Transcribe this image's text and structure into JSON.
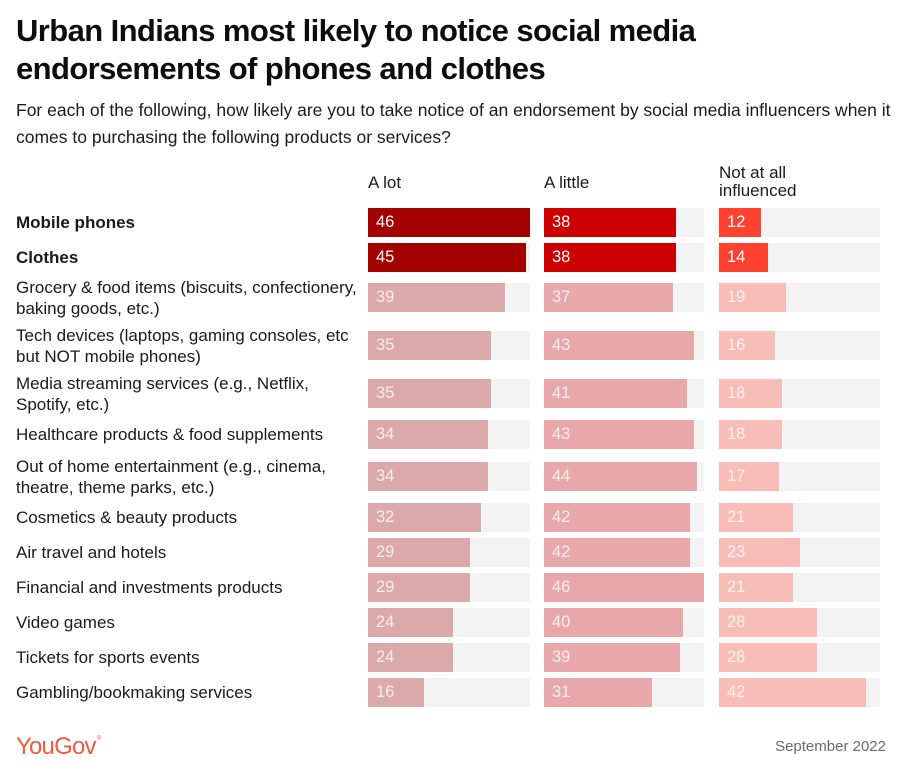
{
  "title": "Urban Indians most likely to notice social media endorsements of phones and clothes",
  "subtitle": "For each of the following, how likely are you to take notice of an endorsement by social media influencers when it comes to purchasing the following products or services?",
  "footer": {
    "logo_text": "YouGov",
    "logo_mark": "®",
    "date": "September 2022"
  },
  "colors": {
    "a_lot_highlight": "#a30000",
    "a_lot_muted": "#dba9a9",
    "a_little_highlight": "#cc0000",
    "a_little_muted": "#e8a8aa",
    "not_at_all_highlight": "#ff4130",
    "not_at_all_muted": "#f9bdb7",
    "track": "#f3f3f3"
  },
  "chart_data": {
    "type": "bar",
    "orientation": "horizontal",
    "layout": "small-multiples",
    "title": "Urban Indians most likely to notice social media endorsements of phones and clothes",
    "subtitle": "For each of the following, how likely are you to take notice of an endorsement by social media influencers when it comes to purchasing the following products or services?",
    "unit": "%",
    "xlim": [
      0,
      46
    ],
    "grid": false,
    "legend": "column headers",
    "categories": [
      "Mobile phones",
      "Clothes",
      "Grocery & food items (biscuits, confectionery, baking goods, etc.)",
      "Tech devices (laptops, gaming consoles, etc but NOT mobile phones)",
      "Media streaming services (e.g., Netflix, Spotify, etc.)",
      "Healthcare products & food supplements",
      "Out of home entertainment (e.g., cinema, theatre, theme parks, etc.)",
      "Cosmetics & beauty products",
      "Air travel and hotels",
      "Financial and investments products",
      "Video games",
      "Tickets for sports events",
      "Gambling/bookmaking services"
    ],
    "highlighted": [
      true,
      true,
      false,
      false,
      false,
      false,
      false,
      false,
      false,
      false,
      false,
      false,
      false
    ],
    "series": [
      {
        "name": "A lot",
        "values": [
          46,
          45,
          39,
          35,
          35,
          34,
          34,
          32,
          29,
          29,
          24,
          24,
          16
        ]
      },
      {
        "name": "A little",
        "values": [
          38,
          38,
          37,
          43,
          41,
          43,
          44,
          42,
          42,
          46,
          40,
          39,
          31
        ]
      },
      {
        "name": "Not at all influenced",
        "values": [
          12,
          14,
          19,
          16,
          18,
          18,
          17,
          21,
          23,
          21,
          28,
          28,
          42
        ]
      }
    ]
  }
}
